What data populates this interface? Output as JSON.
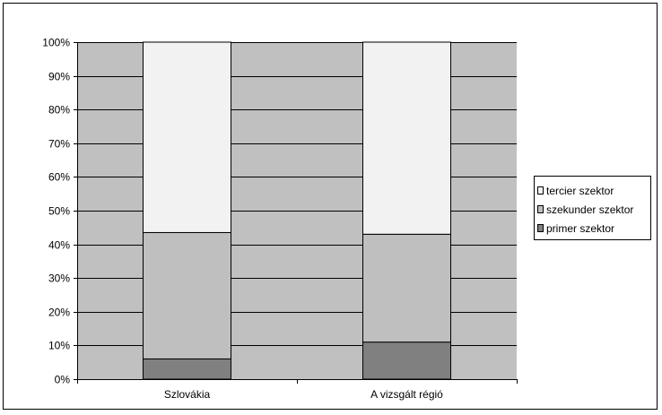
{
  "chart_data": {
    "type": "bar",
    "stacked": true,
    "categories": [
      "Szlovákia",
      "A vizsgált régió"
    ],
    "series": [
      {
        "name": "primer szektor",
        "values": [
          6,
          11
        ],
        "color": "#808080"
      },
      {
        "name": "szekunder szektor",
        "values": [
          37.5,
          32
        ],
        "color": "#bfbfbf"
      },
      {
        "name": "tercier szektor",
        "values": [
          56.5,
          57
        ],
        "color": "#f2f2f2"
      }
    ],
    "ylim": [
      0,
      100
    ],
    "yticks": [
      "0%",
      "10%",
      "20%",
      "30%",
      "40%",
      "50%",
      "60%",
      "70%",
      "80%",
      "90%",
      "100%"
    ],
    "plot_background": "#c0c0c0",
    "grid": true,
    "legend_placement": "right"
  },
  "legend": {
    "items": [
      {
        "label": "tercier szektor",
        "color": "#f2f2f2"
      },
      {
        "label": "szekunder szektor",
        "color": "#bfbfbf"
      },
      {
        "label": "primer szektor",
        "color": "#808080"
      }
    ]
  }
}
